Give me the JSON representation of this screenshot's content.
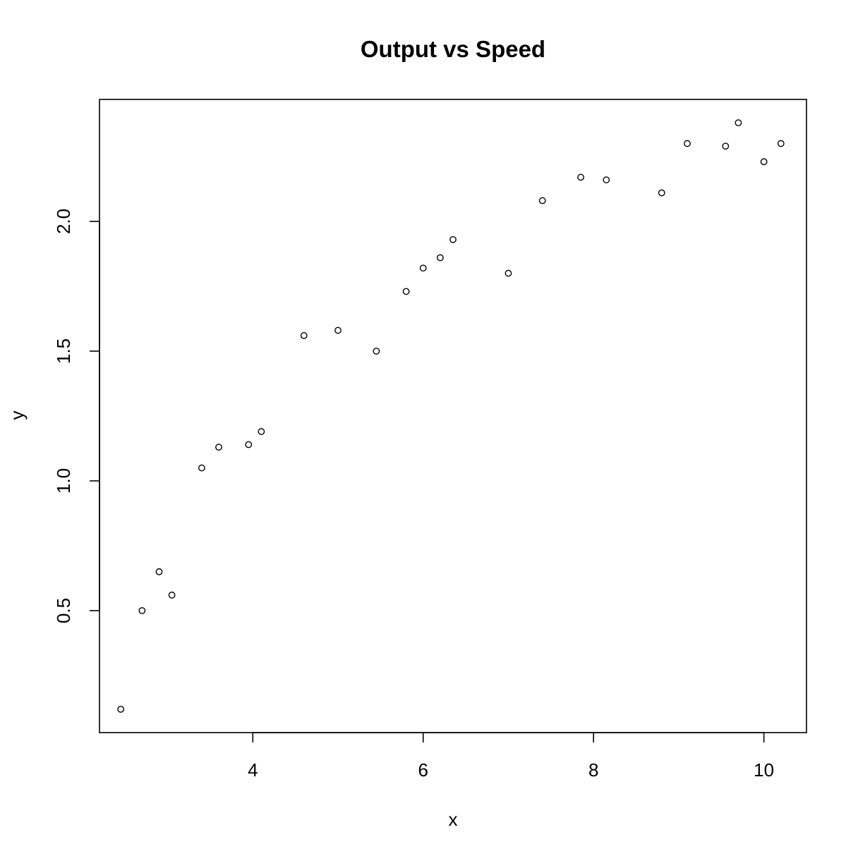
{
  "chart_data": {
    "type": "scatter",
    "title": "Output vs Speed",
    "xlabel": "x",
    "ylabel": "y",
    "xlim": [
      2.2,
      10.5
    ],
    "ylim": [
      0.03,
      2.47
    ],
    "x_ticks": [
      4,
      6,
      8,
      10
    ],
    "x_tick_labels": [
      "4",
      "6",
      "8",
      "10"
    ],
    "y_ticks": [
      0.5,
      1.0,
      1.5,
      2.0
    ],
    "y_tick_labels": [
      "0.5",
      "1.0",
      "1.5",
      "2.0"
    ],
    "grid": false,
    "legend": "none",
    "marker": "open-circle",
    "colors": {
      "marker": "#000000",
      "axes": "#000000",
      "background": "#ffffff"
    },
    "points": [
      {
        "x": 2.45,
        "y": 0.12
      },
      {
        "x": 2.7,
        "y": 0.5
      },
      {
        "x": 2.9,
        "y": 0.65
      },
      {
        "x": 3.05,
        "y": 0.56
      },
      {
        "x": 3.4,
        "y": 1.05
      },
      {
        "x": 3.6,
        "y": 1.13
      },
      {
        "x": 3.95,
        "y": 1.14
      },
      {
        "x": 4.1,
        "y": 1.19
      },
      {
        "x": 4.6,
        "y": 1.56
      },
      {
        "x": 5.0,
        "y": 1.58
      },
      {
        "x": 5.45,
        "y": 1.5
      },
      {
        "x": 5.8,
        "y": 1.73
      },
      {
        "x": 6.0,
        "y": 1.82
      },
      {
        "x": 6.2,
        "y": 1.86
      },
      {
        "x": 6.35,
        "y": 1.93
      },
      {
        "x": 7.0,
        "y": 1.8
      },
      {
        "x": 7.4,
        "y": 2.08
      },
      {
        "x": 7.85,
        "y": 2.17
      },
      {
        "x": 8.15,
        "y": 2.16
      },
      {
        "x": 8.8,
        "y": 2.11
      },
      {
        "x": 9.1,
        "y": 2.3
      },
      {
        "x": 9.55,
        "y": 2.29
      },
      {
        "x": 9.7,
        "y": 2.38
      },
      {
        "x": 10.0,
        "y": 2.23
      },
      {
        "x": 10.2,
        "y": 2.3
      }
    ]
  }
}
